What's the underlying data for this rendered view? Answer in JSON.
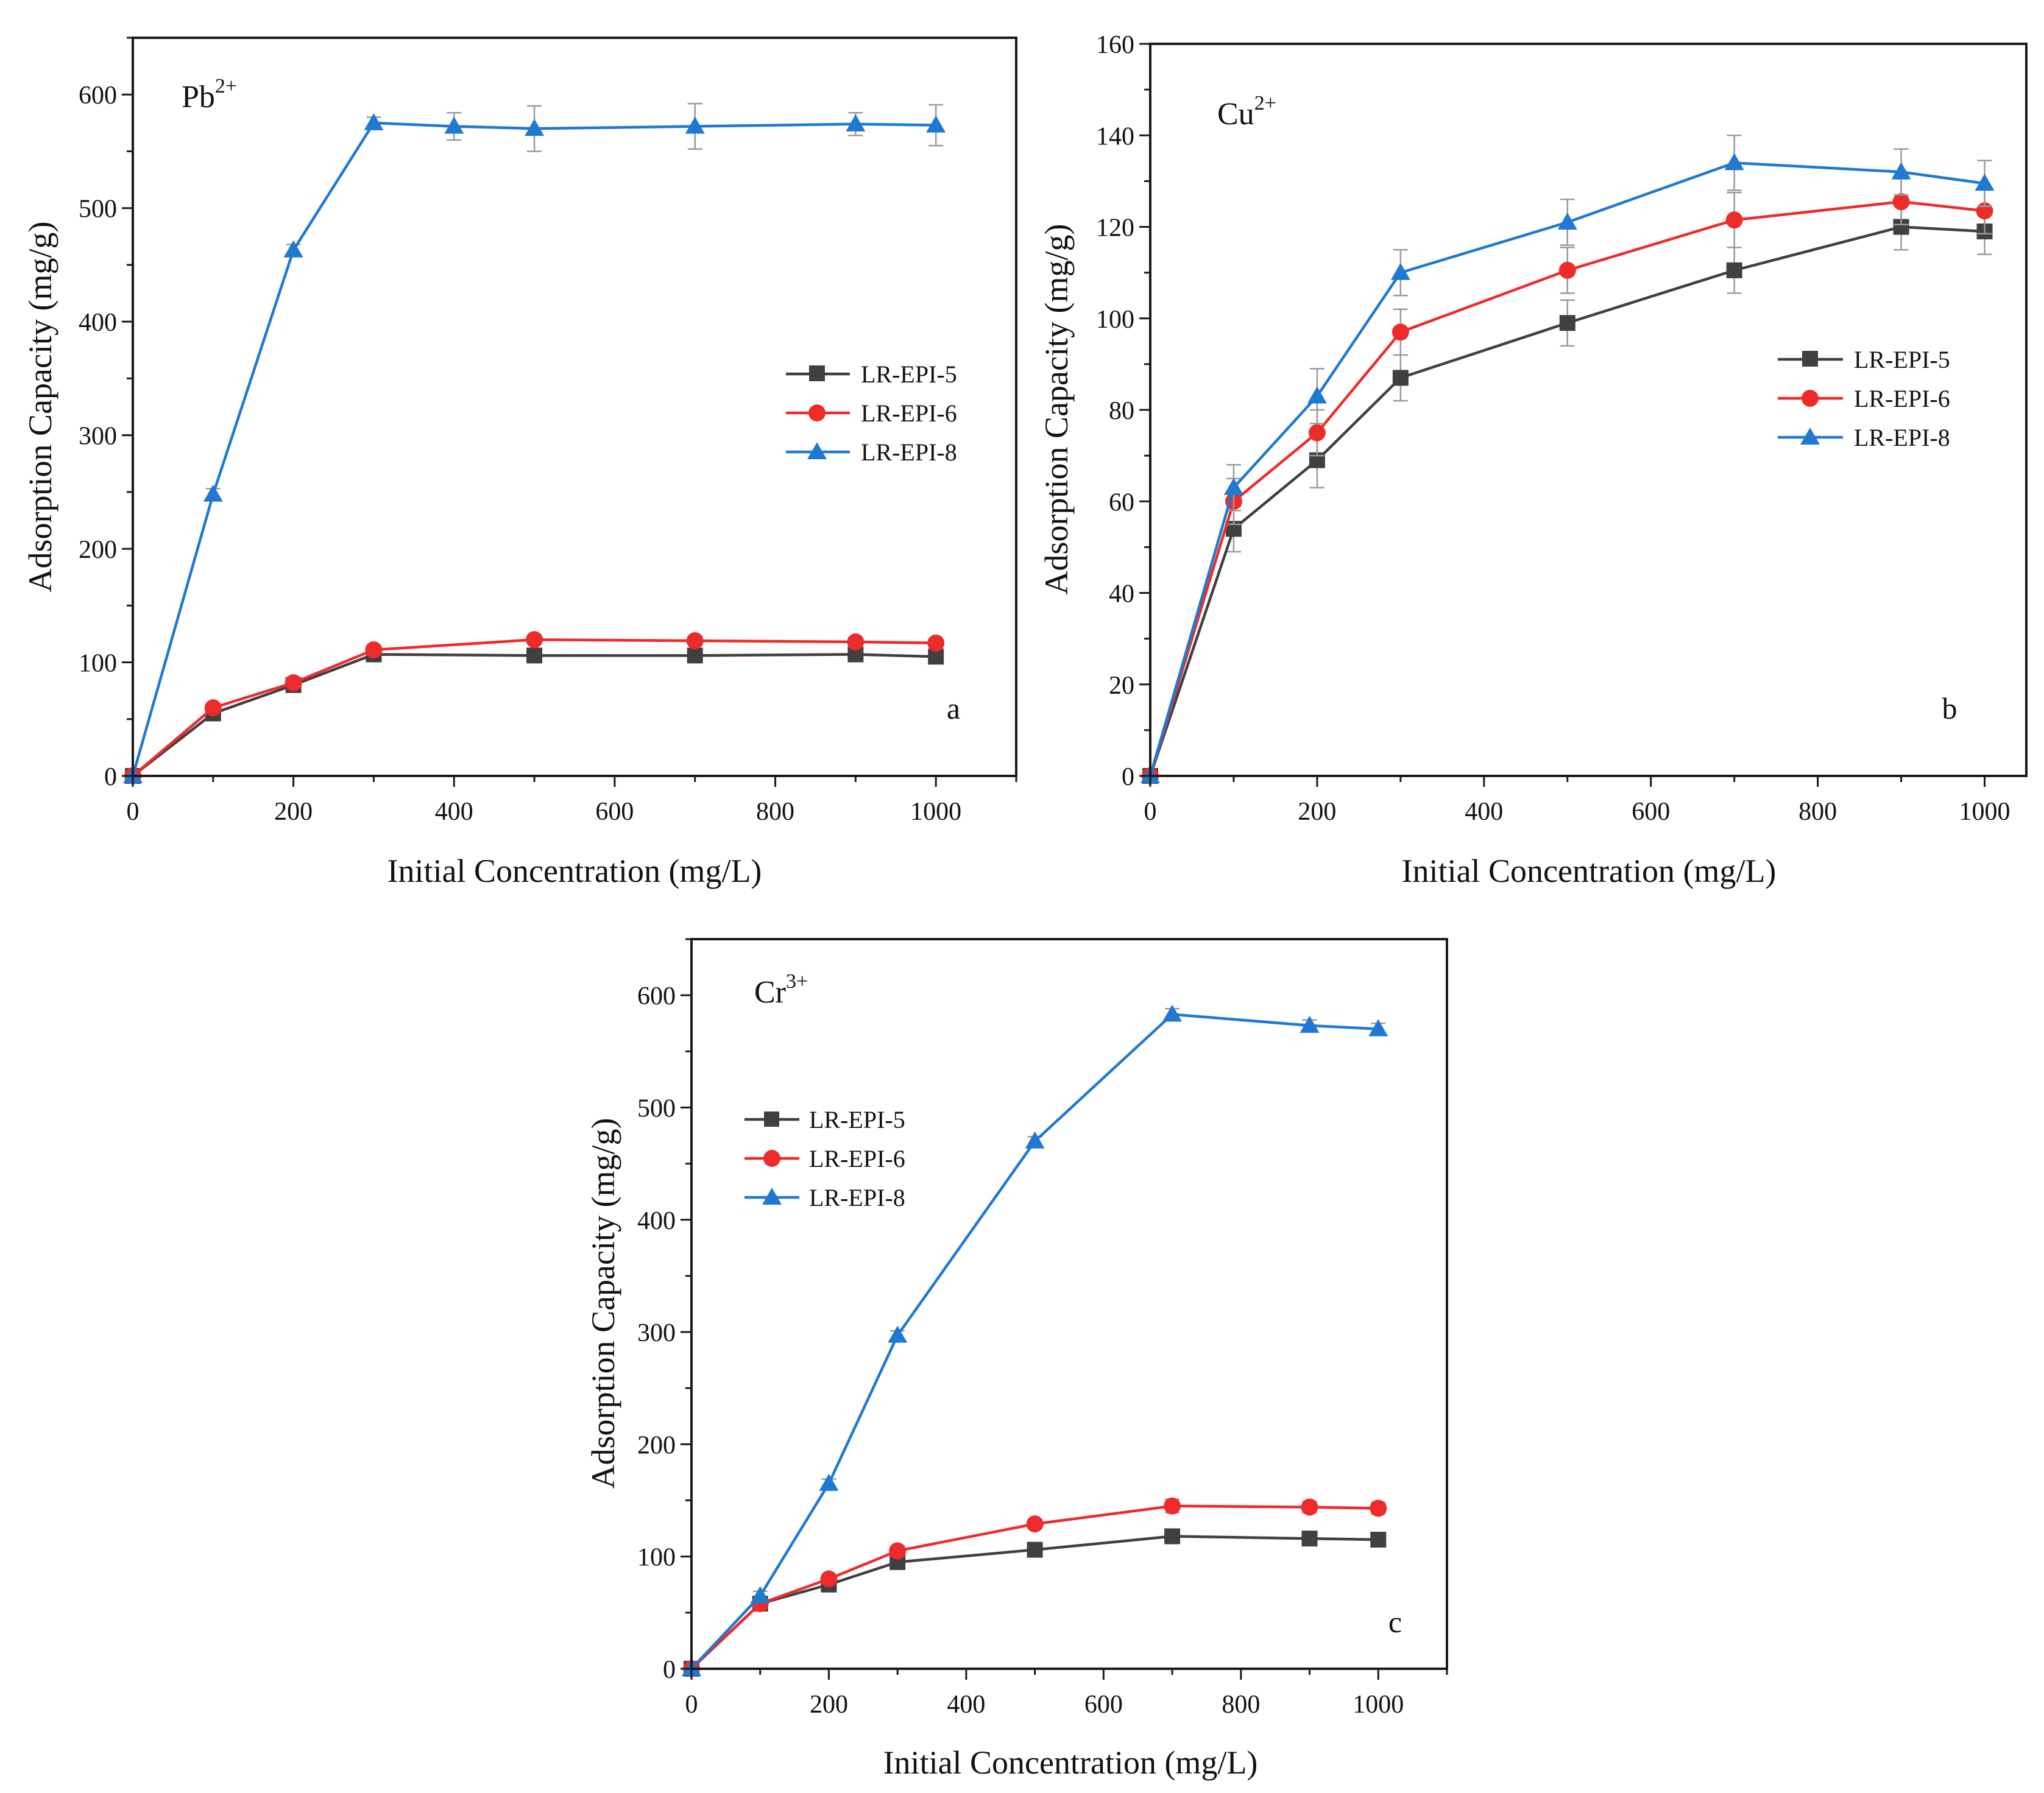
{
  "colors": {
    "LR-EPI-5": "#404040",
    "LR-EPI-6": "#ee2b2b",
    "LR-EPI-8": "#1f78d1",
    "error_bar": "#9a9a9a"
  },
  "chart_data": [
    {
      "id": "a",
      "type": "line",
      "panel_label": "a",
      "ion": "Pb",
      "ion_charge": "2+",
      "xlabel": "Initial Concentration (mg/L)",
      "ylabel": "Adsorption Capacity (mg/g)",
      "xlim": [
        0,
        1100
      ],
      "ylim": [
        0,
        650
      ],
      "xticks": [
        0,
        200,
        400,
        600,
        800,
        1000
      ],
      "yticks": [
        0,
        100,
        200,
        300,
        400,
        500,
        600
      ],
      "legend_position": "center-right",
      "series": [
        {
          "name": "LR-EPI-5",
          "marker": "square",
          "x": [
            0,
            100,
            200,
            300,
            500,
            700,
            900,
            1000
          ],
          "y": [
            0,
            55,
            80,
            107,
            106,
            106,
            107,
            105
          ],
          "err": [
            0,
            3,
            3,
            3,
            3,
            3,
            3,
            3
          ]
        },
        {
          "name": "LR-EPI-6",
          "marker": "circle",
          "x": [
            0,
            100,
            200,
            300,
            500,
            700,
            900,
            1000
          ],
          "y": [
            0,
            60,
            82,
            111,
            120,
            119,
            118,
            117
          ],
          "err": [
            0,
            3,
            3,
            4,
            4,
            4,
            4,
            4
          ]
        },
        {
          "name": "LR-EPI-8",
          "marker": "triangle",
          "x": [
            0,
            100,
            200,
            300,
            400,
            500,
            700,
            900,
            1000
          ],
          "y": [
            0,
            248,
            463,
            575,
            572,
            570,
            572,
            574,
            573
          ],
          "err": [
            0,
            5,
            5,
            5,
            12,
            20,
            20,
            10,
            18
          ]
        }
      ]
    },
    {
      "id": "b",
      "type": "line",
      "panel_label": "b",
      "ion": "Cu",
      "ion_charge": "2+",
      "xlabel": "Initial Concentration (mg/L)",
      "ylabel": "Adsorption Capacity (mg/g)",
      "xlim": [
        0,
        1050
      ],
      "ylim": [
        0,
        160
      ],
      "xticks": [
        0,
        200,
        400,
        600,
        800,
        1000
      ],
      "yticks": [
        0,
        20,
        40,
        60,
        80,
        100,
        120,
        140,
        160
      ],
      "legend_position": "center-right",
      "series": [
        {
          "name": "LR-EPI-5",
          "marker": "square",
          "x": [
            0,
            100,
            200,
            300,
            500,
            700,
            900,
            1000
          ],
          "y": [
            0,
            54,
            69,
            87,
            99,
            110.5,
            120,
            119
          ],
          "err": [
            0,
            5,
            6,
            5,
            5,
            5,
            5,
            5
          ]
        },
        {
          "name": "LR-EPI-6",
          "marker": "circle",
          "x": [
            0,
            100,
            200,
            300,
            500,
            700,
            900,
            1000
          ],
          "y": [
            0,
            60,
            75,
            97,
            110.5,
            121.5,
            125.5,
            123.5
          ],
          "err": [
            0,
            5,
            5,
            5,
            5,
            6,
            5,
            5
          ]
        },
        {
          "name": "LR-EPI-8",
          "marker": "triangle",
          "x": [
            0,
            100,
            200,
            300,
            500,
            700,
            900,
            1000
          ],
          "y": [
            0,
            63,
            83,
            110,
            121,
            134,
            132,
            129.5
          ],
          "err": [
            0,
            5,
            6,
            5,
            5,
            6,
            5,
            5
          ]
        }
      ]
    },
    {
      "id": "c",
      "type": "line",
      "panel_label": "c",
      "ion": "Cr",
      "ion_charge": "3+",
      "xlabel": "Initial Concentration (mg/L)",
      "ylabel": "Adsorption Capacity (mg/g)",
      "xlim": [
        0,
        1100
      ],
      "ylim": [
        0,
        650
      ],
      "xticks": [
        0,
        200,
        400,
        600,
        800,
        1000
      ],
      "yticks": [
        0,
        100,
        200,
        300,
        400,
        500,
        600
      ],
      "legend_position": "upper-left",
      "series": [
        {
          "name": "LR-EPI-5",
          "marker": "square",
          "x": [
            0,
            100,
            200,
            300,
            500,
            700,
            900,
            1000
          ],
          "y": [
            0,
            58,
            75,
            95,
            106,
            118,
            116,
            115
          ],
          "err": [
            0,
            3,
            3,
            3,
            3,
            4,
            4,
            4
          ]
        },
        {
          "name": "LR-EPI-6",
          "marker": "circle",
          "x": [
            0,
            100,
            200,
            300,
            500,
            700,
            900,
            1000
          ],
          "y": [
            0,
            58,
            80,
            105,
            129,
            145,
            144,
            143
          ],
          "err": [
            0,
            3,
            3,
            4,
            4,
            6,
            5,
            5
          ]
        },
        {
          "name": "LR-EPI-8",
          "marker": "triangle",
          "x": [
            0,
            100,
            200,
            300,
            500,
            700,
            900,
            1000
          ],
          "y": [
            0,
            65,
            165,
            297,
            470,
            583,
            573,
            570
          ],
          "err": [
            0,
            4,
            4,
            4,
            4,
            5,
            5,
            5
          ]
        }
      ]
    }
  ]
}
